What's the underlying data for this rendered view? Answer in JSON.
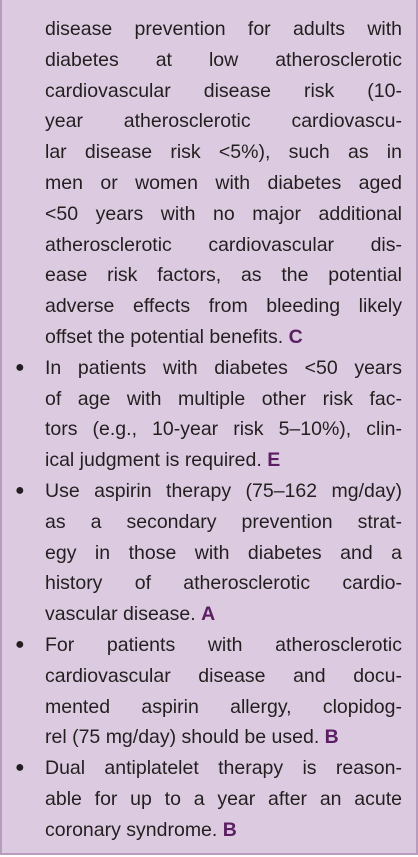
{
  "items": [
    {
      "lines": [
        "disease prevention for adults with",
        "diabetes at low atherosclerotic",
        "cardiovascular disease risk (10-",
        "year atherosclerotic cardiovascu-",
        "lar disease risk <5%), such as in",
        "men or women with diabetes aged",
        "<50 years with no major additional",
        "atherosclerotic cardiovascular dis-",
        "ease risk factors, as the potential",
        "adverse effects from bleeding likely",
        "offset the potential benefits."
      ],
      "grade": "C"
    },
    {
      "lines": [
        "In patients with diabetes <50 years",
        "of age with multiple other risk fac-",
        "tors (e.g., 10-year risk 5–10%), clin-",
        "ical judgment is required."
      ],
      "grade": "E"
    },
    {
      "lines": [
        "Use aspirin therapy (75–162 mg/day)",
        "as a secondary prevention strat-",
        "egy in those with diabetes and a",
        "history of atherosclerotic cardio-",
        "vascular disease."
      ],
      "grade": "A"
    },
    {
      "lines": [
        "For patients with atherosclerotic",
        "cardiovascular disease and docu-",
        "mented aspirin allergy, clopidog-",
        "rel (75 mg/day) should be used."
      ],
      "grade": "B"
    },
    {
      "lines": [
        "Dual antiplatelet therapy is reason-",
        "able for up to a year after an acute",
        "coronary syndrome."
      ],
      "grade": "B"
    }
  ]
}
